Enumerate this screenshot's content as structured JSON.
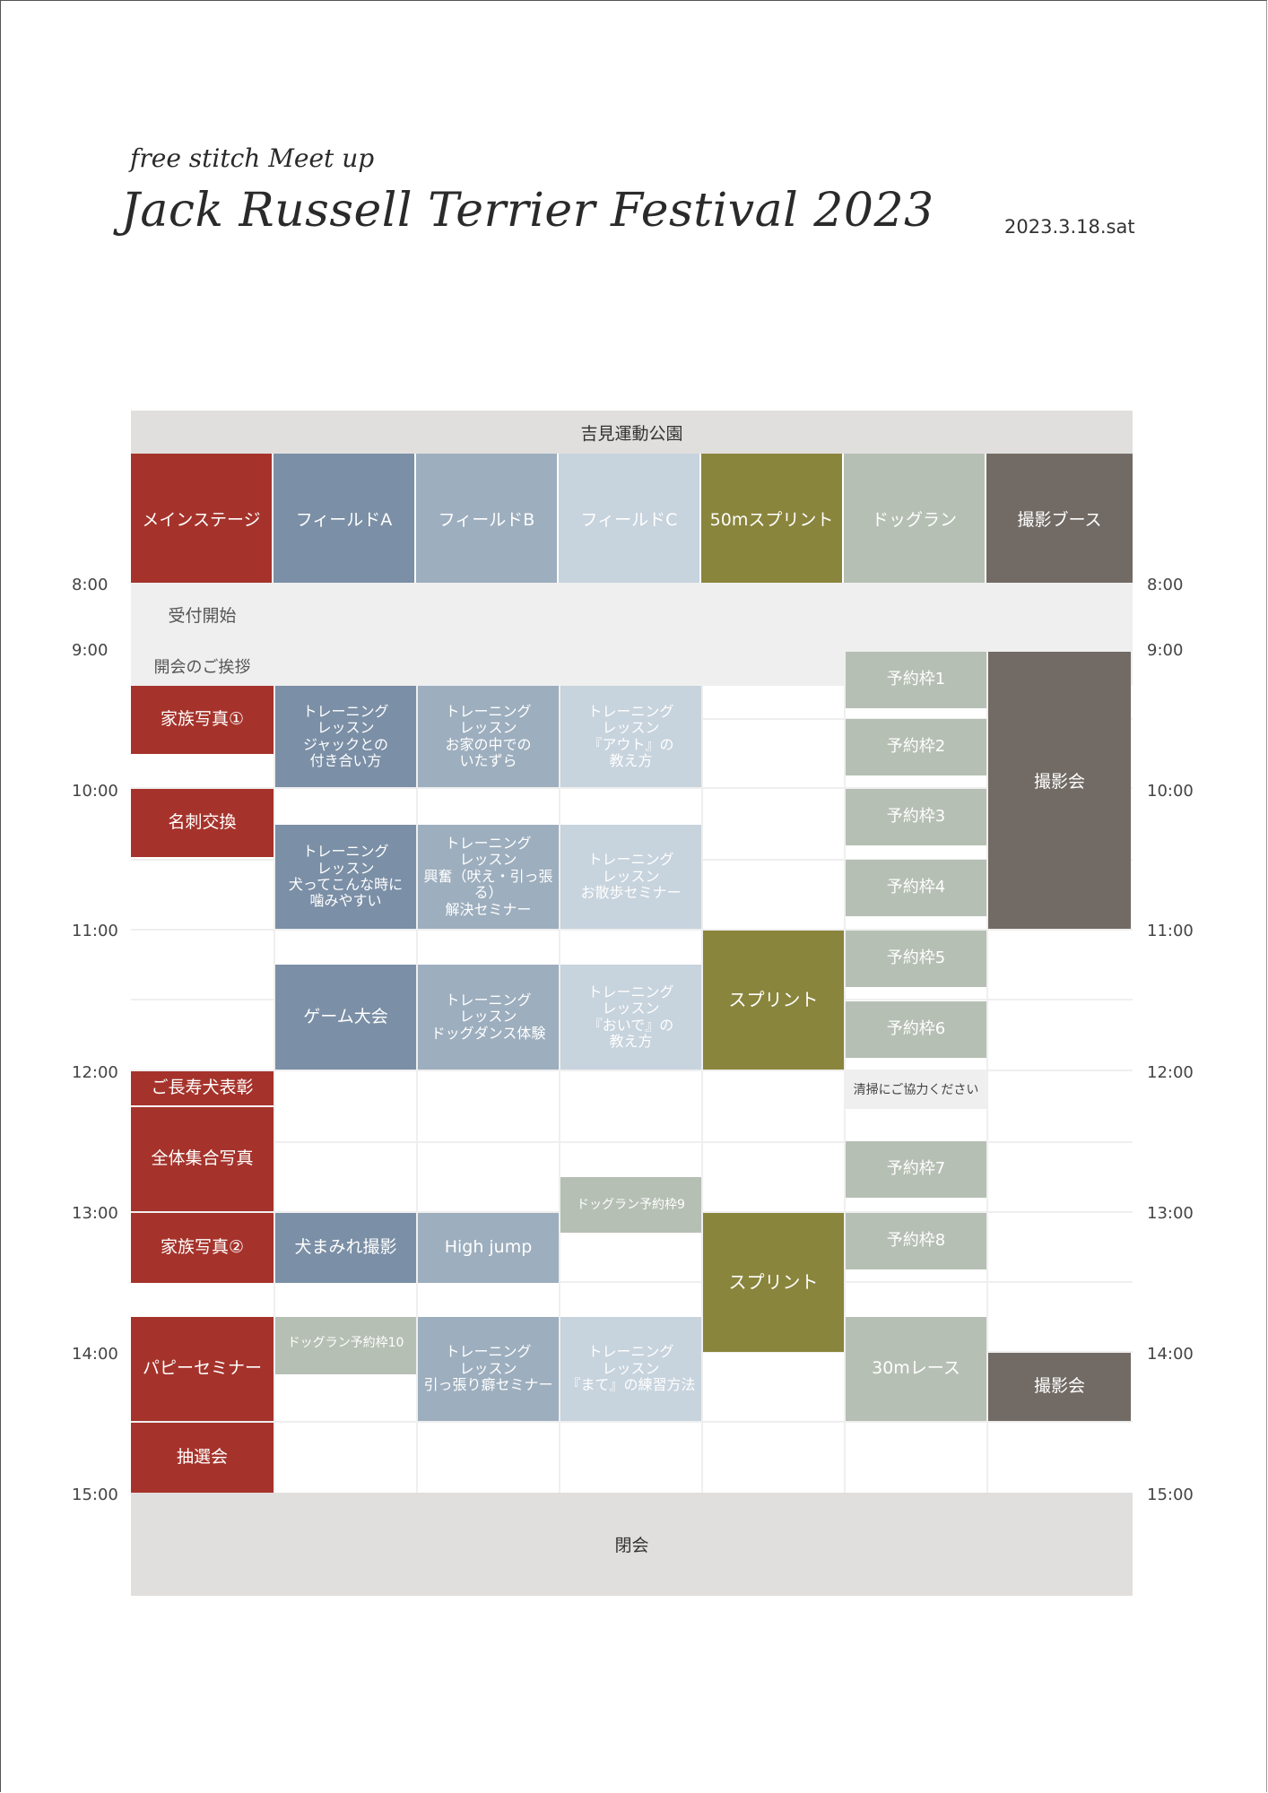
{
  "header": {
    "subtitle": "free stitch Meet up",
    "title": "Jack Russell Terrier Festival 2023",
    "date": "2023.3.18.sat"
  },
  "venue": "吉見運動公園",
  "columns": [
    "メインステージ",
    "フィールドA",
    "フィールドB",
    "フィールドC",
    "50mスプリント",
    "ドッグラン",
    "撮影ブース"
  ],
  "colors": {
    "main": "#a5332b",
    "field_a": "#7b8fa6",
    "field_b": "#9daebe",
    "field_c": "#c7d3dd",
    "sprint": "#8a853d",
    "dogrun": "#b6bfb4",
    "photo": "#726b65",
    "venue": "#e1dfdd"
  },
  "times": [
    "8:00",
    "9:00",
    "10:00",
    "11:00",
    "12:00",
    "13:00",
    "14:00",
    "15:00"
  ],
  "main_stage": [
    "受付開始",
    "開会のご挨拶",
    "家族写真①",
    "名刺交換",
    "ご長寿犬表彰",
    "全体集合写真",
    "家族写真②",
    "パピーセミナー",
    "抽選会"
  ],
  "field_a": [
    "トレーニング\nレッスン\nジャックとの\n付き合い方",
    "トレーニング\nレッスン\n犬ってこんな時に\n噛みやすい",
    "ゲーム大会",
    "犬まみれ撮影",
    "ドッグラン予約枠10"
  ],
  "field_b": [
    "トレーニング\nレッスン\nお家の中での\nいたずら",
    "トレーニング\nレッスン\n興奮（吠え・引っ張る）\n解決セミナー",
    "トレーニング\nレッスン\nドッグダンス体験",
    "High jump",
    "トレーニング\nレッスン\n引っ張り癖セミナー"
  ],
  "field_c": [
    "トレーニング\nレッスン\n『アウト』の\n教え方",
    "トレーニング\nレッスン\nお散歩セミナー",
    "トレーニング\nレッスン\n『おいで』の\n教え方",
    "ドッグラン予約枠9",
    "トレーニング\nレッスン\n『まて』の練習方法"
  ],
  "sprint": [
    "スプリント",
    "スプリント"
  ],
  "dogrun": [
    "予約枠1",
    "予約枠2",
    "予約枠3",
    "予約枠4",
    "予約枠5",
    "予約枠6",
    "清掃にご協力ください",
    "予約枠7",
    "予約枠8",
    "30mレース"
  ],
  "photo_booth": [
    "撮影会",
    "撮影会"
  ],
  "closing": "閉会"
}
